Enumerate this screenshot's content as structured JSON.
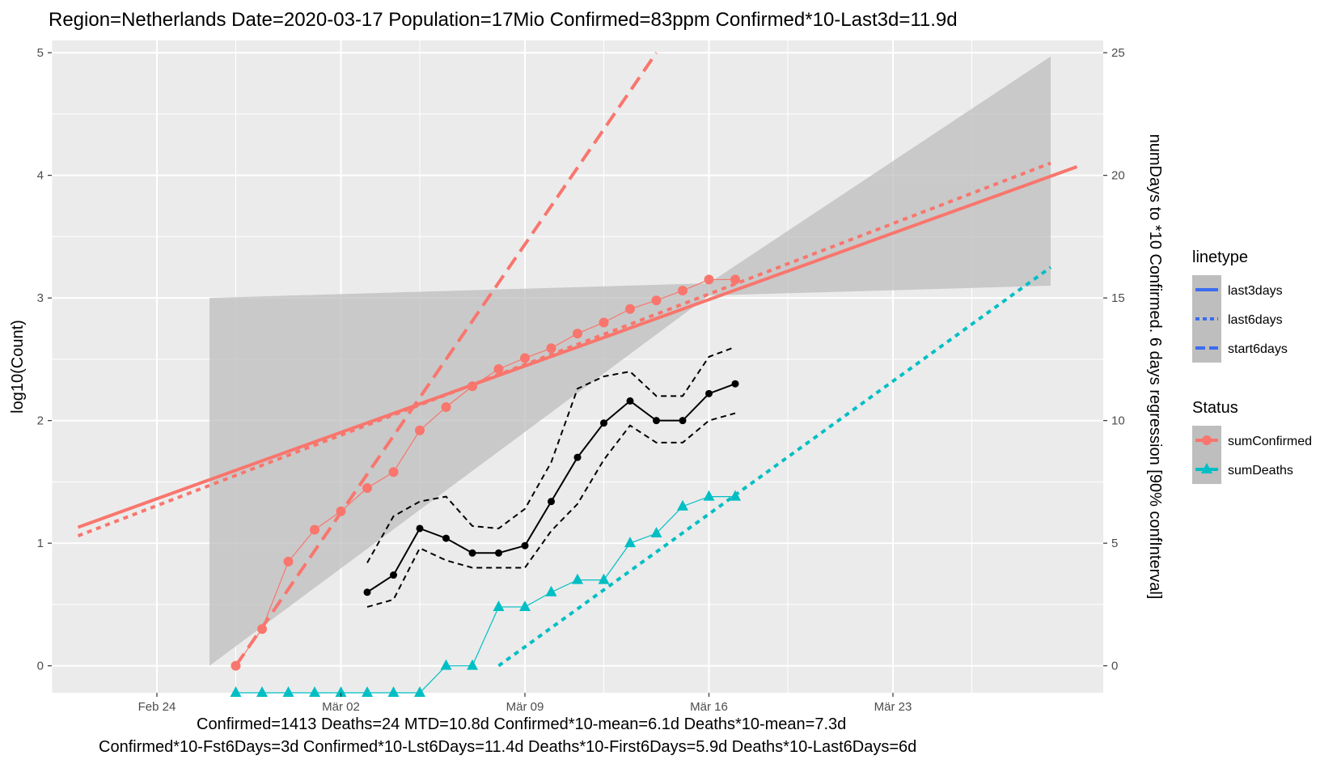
{
  "title": "Region=Netherlands Date=2020-03-17  Population=17Mio Confirmed=83ppm  Confirmed*10-Last3d=11.9d",
  "footer": {
    "line1": "Confirmed=1413 Deaths=24  MTD=10.8d   Confirmed*10-mean=6.1d  Deaths*10-mean=7.3d",
    "line2": "Confirmed*10-Fst6Days=3d  Confirmed*10-Lst6Days=11.4d    Deaths*10-First6Days=5.9d  Deaths*10-Last6Days=6d"
  },
  "colors": {
    "panel": "#ebebeb",
    "grid": "#ffffff",
    "confirmed": "#f8766d",
    "deaths": "#00bfc4",
    "regression_line": "#f8766d",
    "ribbon": "#bebebe",
    "legend_line": "#3c6cf0",
    "days_line": "#000000"
  },
  "chart_data": {
    "type": "line",
    "title": "Region=Netherlands Date=2020-03-17  Population=17Mio Confirmed=83ppm  Confirmed*10-Last3d=11.9d",
    "xlabel": "",
    "ylabel": "log10(Count)",
    "y2label": "numDays to *10 Confirmed. 6 days regression [90% confInterval]",
    "x_ticks": [
      {
        "date": "2020-02-24",
        "label": "Feb 24"
      },
      {
        "date": "2020-03-02",
        "label": "Mär 02"
      },
      {
        "date": "2020-03-09",
        "label": "Mär 09"
      },
      {
        "date": "2020-03-16",
        "label": "Mär 16"
      },
      {
        "date": "2020-03-23",
        "label": "Mär 23"
      }
    ],
    "xlim": [
      "2020-02-20",
      "2020-03-31"
    ],
    "ylim": [
      -0.22,
      5.1
    ],
    "y_ticks": [
      0,
      1,
      2,
      3,
      4,
      5
    ],
    "y2lim": [
      -1.1,
      25.5
    ],
    "y2_ticks": [
      0,
      5,
      10,
      15,
      20,
      25
    ],
    "grid": true,
    "legend": {
      "placement": "right",
      "linetype": {
        "title": "linetype",
        "items": [
          "last3days",
          "last6days",
          "start6days"
        ]
      },
      "status": {
        "title": "Status",
        "items": [
          "sumConfirmed",
          "sumDeaths"
        ]
      }
    },
    "series": [
      {
        "name": "sumConfirmed",
        "axis": "left",
        "x": [
          "2020-02-27",
          "2020-02-28",
          "2020-02-29",
          "2020-03-01",
          "2020-03-02",
          "2020-03-03",
          "2020-03-04",
          "2020-03-05",
          "2020-03-06",
          "2020-03-07",
          "2020-03-08",
          "2020-03-09",
          "2020-03-10",
          "2020-03-11",
          "2020-03-12",
          "2020-03-13",
          "2020-03-14",
          "2020-03-15",
          "2020-03-16",
          "2020-03-17"
        ],
        "y": [
          0,
          0.3,
          0.85,
          1.11,
          1.26,
          1.45,
          1.58,
          1.92,
          2.11,
          2.28,
          2.42,
          2.51,
          2.59,
          2.71,
          2.8,
          2.91,
          2.98,
          3.06,
          3.15,
          3.15
        ]
      },
      {
        "name": "sumDeaths",
        "axis": "left",
        "x": [
          "2020-02-27",
          "2020-02-28",
          "2020-02-29",
          "2020-03-01",
          "2020-03-02",
          "2020-03-03",
          "2020-03-04",
          "2020-03-05",
          "2020-03-06",
          "2020-03-07",
          "2020-03-08",
          "2020-03-09",
          "2020-03-10",
          "2020-03-11",
          "2020-03-12",
          "2020-03-13",
          "2020-03-14",
          "2020-03-15",
          "2020-03-16",
          "2020-03-17"
        ],
        "y": [
          -0.22,
          -0.22,
          -0.22,
          -0.22,
          -0.22,
          -0.22,
          -0.22,
          -0.22,
          0,
          0,
          0.48,
          0.48,
          0.6,
          0.7,
          0.7,
          1.0,
          1.08,
          1.3,
          1.38,
          1.38
        ]
      },
      {
        "axis": "right",
        "x": [
          "2020-03-03",
          "2020-03-04",
          "2020-03-05",
          "2020-03-06",
          "2020-03-07",
          "2020-03-08",
          "2020-03-09",
          "2020-03-10",
          "2020-03-11",
          "2020-03-12",
          "2020-03-13",
          "2020-03-14",
          "2020-03-15",
          "2020-03-16",
          "2020-03-17"
        ],
        "y": [
          3.0,
          3.7,
          5.6,
          5.2,
          4.6,
          4.6,
          4.9,
          6.7,
          8.5,
          9.9,
          10.8,
          10.0,
          10.0,
          11.1,
          11.5
        ]
      },
      {
        "axis": "right",
        "x": [
          "2020-03-03",
          "2020-03-04",
          "2020-03-05",
          "2020-03-06",
          "2020-03-07",
          "2020-03-08",
          "2020-03-09",
          "2020-03-10",
          "2020-03-11",
          "2020-03-12",
          "2020-03-13",
          "2020-03-14",
          "2020-03-15",
          "2020-03-16",
          "2020-03-17"
        ],
        "y": [
          4.2,
          6.1,
          6.7,
          6.9,
          5.7,
          5.6,
          6.4,
          8.3,
          11.3,
          11.8,
          12.0,
          11.0,
          11.0,
          12.6,
          13.0
        ]
      },
      {
        "axis": "right",
        "x": [
          "2020-03-03",
          "2020-03-04",
          "2020-03-05",
          "2020-03-06",
          "2020-03-07",
          "2020-03-08",
          "2020-03-09",
          "2020-03-10",
          "2020-03-11",
          "2020-03-12",
          "2020-03-13",
          "2020-03-14",
          "2020-03-15",
          "2020-03-16",
          "2020-03-17"
        ],
        "y": [
          2.4,
          2.7,
          4.8,
          4.3,
          4.0,
          4.0,
          4.0,
          5.5,
          6.6,
          8.4,
          9.8,
          9.1,
          9.1,
          10.0,
          10.3
        ]
      }
    ],
    "regressions": [
      {
        "name": "last3days",
        "color": "confirmed",
        "dash": "solid",
        "x": [
          "2020-02-21",
          "2020-03-30"
        ],
        "y": [
          1.13,
          4.07
        ]
      },
      {
        "name": "last6days",
        "color": "confirmed",
        "dash": "dotted",
        "x": [
          "2020-02-21",
          "2020-03-29"
        ],
        "y": [
          1.06,
          4.1
        ]
      },
      {
        "name": "start6days",
        "color": "confirmed",
        "dash": "dashed",
        "x": [
          "2020-02-27",
          "2020-03-14"
        ],
        "y": [
          0,
          5.0
        ]
      },
      {
        "name": "last6days",
        "color": "deaths",
        "dash": "dotted",
        "x": [
          "2020-03-08",
          "2020-03-29"
        ],
        "y": [
          0,
          3.25
        ]
      }
    ],
    "ribbon": {
      "x": [
        "2020-02-26",
        "2020-03-16",
        "2020-03-29"
      ],
      "upper": [
        3.0,
        3.12,
        4.97
      ],
      "lower": [
        0.0,
        3.02,
        3.1
      ]
    }
  }
}
